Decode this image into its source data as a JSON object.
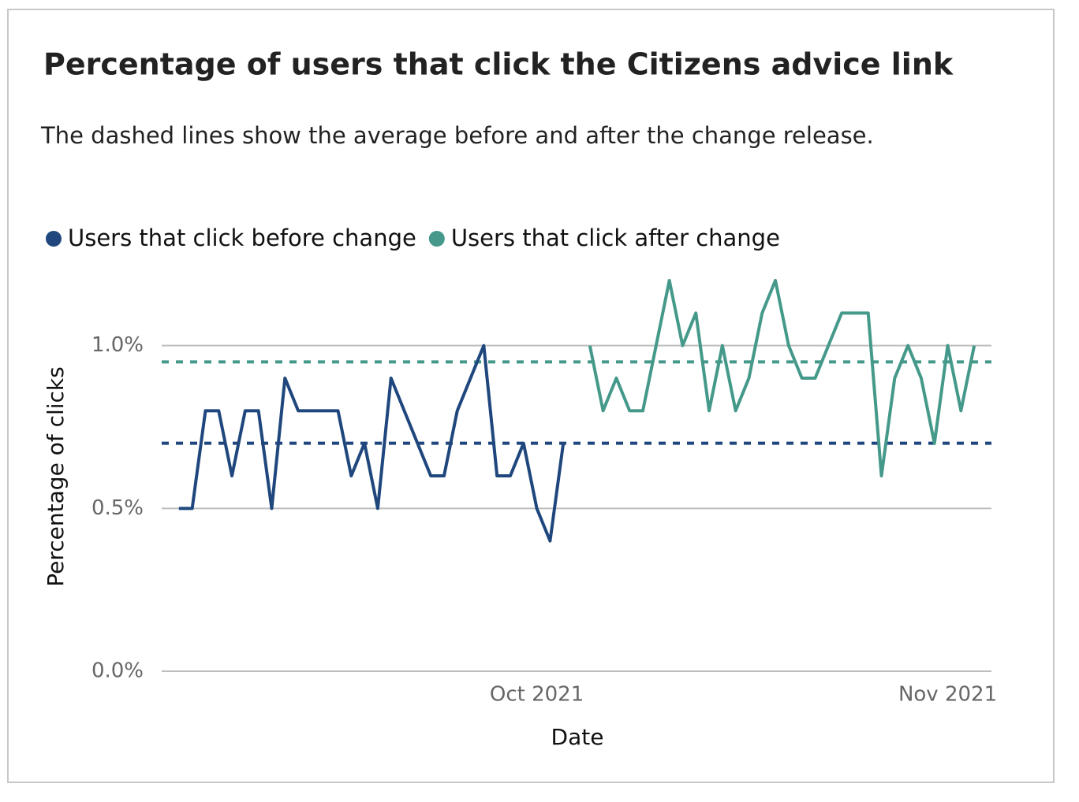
{
  "chart_data": {
    "type": "line",
    "title": "Percentage of users that click the Citizens advice link",
    "subtitle": "The dashed lines show the average before and after the change release.",
    "x_label": "Date",
    "y_label": "Percentage of clicks",
    "xlim": [
      -1.3,
      61.3
    ],
    "xticks": [
      {
        "value": 27,
        "label": "Oct 2021"
      },
      {
        "value": 58,
        "label": "Nov 2021"
      }
    ],
    "ylim": [
      0,
      1.2
    ],
    "yticks": [
      {
        "value": 0,
        "label": "0.0%"
      },
      {
        "value": 0.5,
        "label": "0.5%"
      },
      {
        "value": 1.0,
        "label": "1.0%"
      }
    ],
    "grid": true,
    "legend": "top-left",
    "series": [
      {
        "name": "Users that click before change",
        "color": "#1f477d",
        "x": [
          0,
          1,
          2,
          3,
          4,
          5,
          6,
          7,
          8,
          9,
          10,
          11,
          12,
          13,
          14,
          15,
          16,
          17,
          18,
          19,
          20,
          21,
          22,
          23,
          24,
          25,
          26,
          27,
          28,
          29
        ],
        "values": [
          0.5,
          0.5,
          0.8,
          0.8,
          0.6,
          0.8,
          0.8,
          0.5,
          0.9,
          0.8,
          0.8,
          0.8,
          0.8,
          0.6,
          0.7,
          0.5,
          0.9,
          0.8,
          0.7,
          0.6,
          0.6,
          0.8,
          0.9,
          1.0,
          0.6,
          0.6,
          0.7,
          0.5,
          0.4,
          0.7
        ]
      },
      {
        "name": "Users that click after change",
        "color": "#45998a",
        "x": [
          31,
          32,
          33,
          34,
          35,
          36,
          37,
          38,
          39,
          40,
          41,
          42,
          43,
          44,
          45,
          46,
          47,
          48,
          49,
          50,
          51,
          52,
          53,
          54,
          55,
          56,
          57,
          58,
          59,
          60
        ],
        "values": [
          1.0,
          0.8,
          0.9,
          0.8,
          0.8,
          1.0,
          1.2,
          1.0,
          1.1,
          0.8,
          1.0,
          0.8,
          0.9,
          1.1,
          1.2,
          1.0,
          0.9,
          0.9,
          1.0,
          1.1,
          1.1,
          1.1,
          0.6,
          0.9,
          1.0,
          0.9,
          0.7,
          1.0,
          0.8,
          1.0
        ]
      }
    ],
    "reference_lines": [
      {
        "value": 0.7,
        "color": "#1f477d"
      },
      {
        "value": 0.95,
        "color": "#45998a"
      }
    ]
  }
}
